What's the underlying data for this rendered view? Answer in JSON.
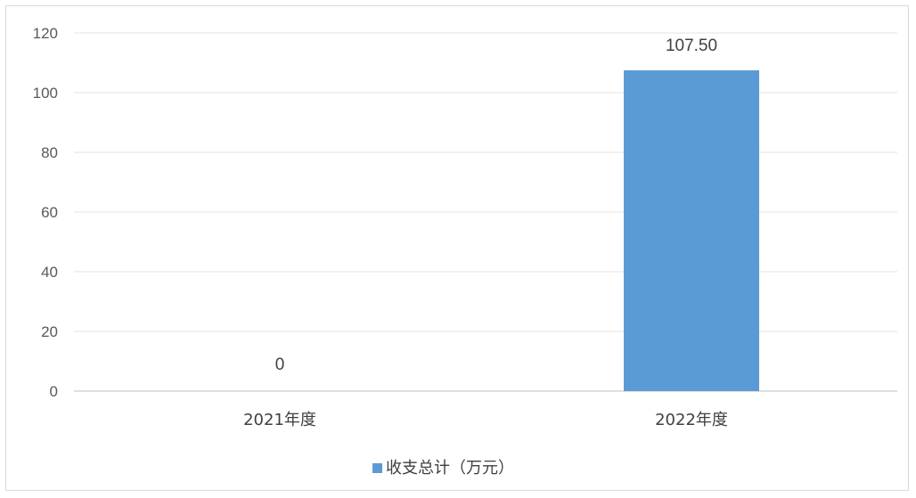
{
  "chart_data": {
    "type": "bar",
    "categories": [
      "2021年度",
      "2022年度"
    ],
    "series": [
      {
        "name": "收支总计（万元）",
        "values": [
          0,
          107.5
        ],
        "data_labels": [
          "0",
          "107.50"
        ]
      }
    ],
    "title": "",
    "xlabel": "",
    "ylabel": "",
    "ylim": [
      0,
      120
    ],
    "yticks": [
      "0",
      "20",
      "40",
      "60",
      "80",
      "100",
      "120"
    ],
    "grid": true,
    "legend_position": "bottom",
    "colors": {
      "bar": "#5b9bd5",
      "grid": "#e3e3e3",
      "axis": "#bfbfbf"
    }
  }
}
